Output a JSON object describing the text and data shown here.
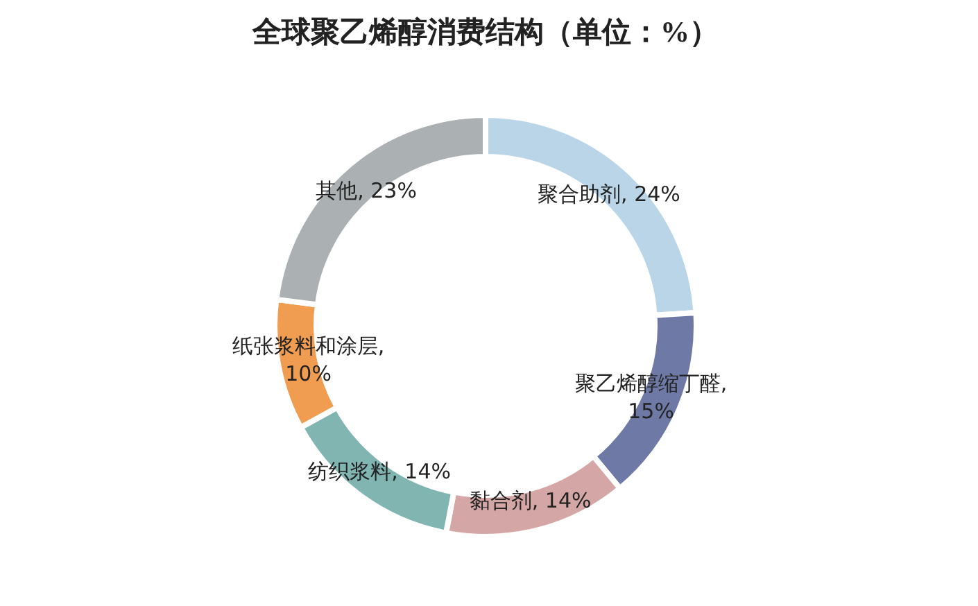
{
  "chart_data": {
    "type": "donut",
    "title": "全球聚乙烯醇消费结构（单位：%）",
    "categories": [
      "聚合助剂",
      "聚乙烯醇缩丁醛",
      "黏合剂",
      "纺织浆料",
      "纸张浆料和涂层",
      "其他"
    ],
    "values": [
      24,
      15,
      14,
      14,
      10,
      23
    ],
    "value_labels": [
      ", 24%",
      ", 15%",
      ", 14%",
      ", 14%",
      ", 10%",
      ", 23%"
    ],
    "colors": [
      "#b9d5e7",
      "#6f79a5",
      "#d5a6a6",
      "#80b5b1",
      "#f09d52",
      "#abb1b2"
    ]
  }
}
